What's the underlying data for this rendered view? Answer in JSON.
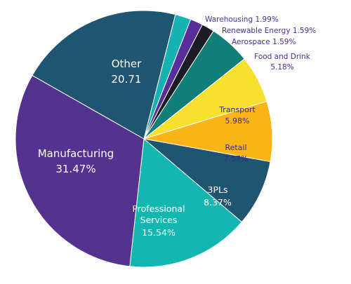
{
  "chart_data": {
    "type": "pie",
    "title": "",
    "unit_suffix": "%",
    "slices": [
      {
        "label": "Warehousing",
        "value": 1.99,
        "value_text": "1.99%",
        "color": "#17b3b3",
        "label_color": "#4b2e91",
        "label_mode": "outside",
        "label_text_color": "#4b2e91"
      },
      {
        "label": "Renewable Energy",
        "value": 1.59,
        "value_text": "1.59%",
        "color": "#5a2e9a",
        "label_mode": "outside",
        "label_text_color": "#4b2e91"
      },
      {
        "label": "Aerospace",
        "value": 1.59,
        "value_text": "1.59%",
        "color": "#1c1c24",
        "label_mode": "outside",
        "label_text_color": "#4b2e91"
      },
      {
        "label": "Food and Drink",
        "value": 5.18,
        "value_text": "5.18%",
        "color": "#127e78",
        "label_mode": "outside-stacked",
        "label_text_color": "#4b2e91"
      },
      {
        "label": "Transport",
        "value": 5.98,
        "value_text": "5.98%",
        "color": "#f7e12e",
        "label_mode": "inside",
        "label_text_color": "#3d2a80"
      },
      {
        "label": "Retail",
        "value": 7.57,
        "value_text": "7.57%",
        "color": "#f9b417",
        "label_mode": "inside",
        "label_text_color": "#3d2a80"
      },
      {
        "label": "3PLs",
        "value": 8.37,
        "value_text": "8.37%",
        "color": "#1f5570",
        "label_mode": "inside",
        "label_text_color": "#ffffff"
      },
      {
        "label": "Professional Services",
        "label_lines": [
          "Professional",
          "Services"
        ],
        "value": 15.54,
        "value_text": "15.54%",
        "color": "#14b7b0",
        "label_mode": "inside",
        "label_text_color": "#ffffff"
      },
      {
        "label": "Manufacturing",
        "value": 31.47,
        "value_text": "31.47%",
        "color": "#54328f",
        "label_mode": "inside",
        "label_text_color": "#ffffff"
      },
      {
        "label": "Other",
        "value": 20.71,
        "value_text": "20.71",
        "color": "#1f5570",
        "label_mode": "inside",
        "label_text_color": "#ffffff"
      }
    ]
  }
}
